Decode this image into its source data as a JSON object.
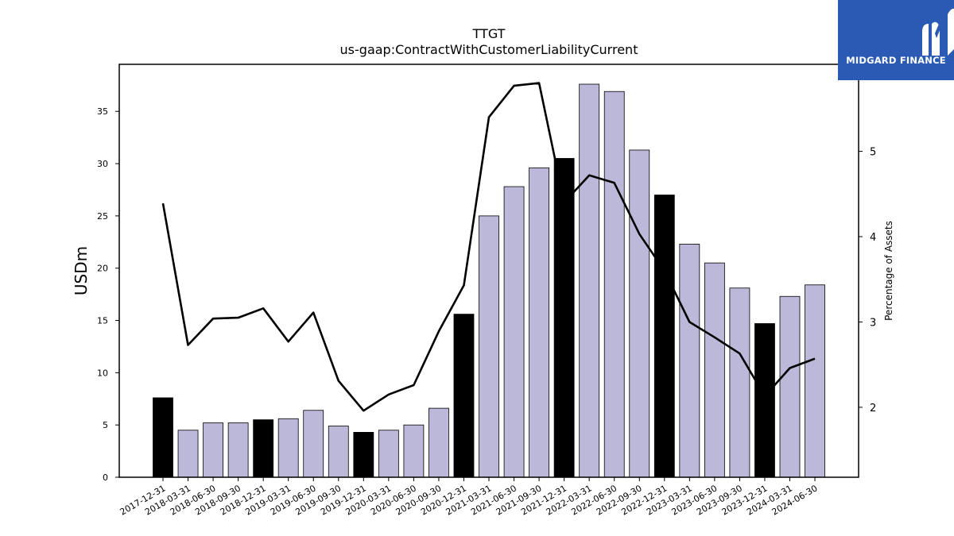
{
  "chart_data": {
    "type": "bar",
    "title": "TTGT",
    "subtitle": "us-gaap:ContractWithCustomerLiabilityCurrent",
    "ylabel": "USDm",
    "ylabel_right": "Percentage of Assets",
    "ylim": [
      0,
      39.5
    ],
    "ylim_right": [
      1.18,
      6.02
    ],
    "yticks": [
      0,
      5,
      10,
      15,
      20,
      25,
      30,
      35
    ],
    "yticks_right": [
      2,
      3,
      4,
      5
    ],
    "grid": false,
    "categories": [
      "2017-12-31",
      "2018-03-31",
      "2018-06-30",
      "2018-09-30",
      "2018-12-31",
      "2019-03-31",
      "2019-06-30",
      "2019-09-30",
      "2019-12-31",
      "2020-03-31",
      "2020-06-30",
      "2020-09-30",
      "2020-12-31",
      "2021-03-31",
      "2021-06-30",
      "2021-09-30",
      "2021-12-31",
      "2022-03-31",
      "2022-06-30",
      "2022-09-30",
      "2022-12-31",
      "2023-03-31",
      "2023-06-30",
      "2023-09-30",
      "2023-12-31",
      "2024-03-31",
      "2024-06-30"
    ],
    "series": [
      {
        "values": [
          7.6,
          4.5,
          5.2,
          5.2,
          5.5,
          5.6,
          6.4,
          4.9,
          4.3,
          4.5,
          5.0,
          6.6,
          15.6,
          25.0,
          27.8,
          29.6,
          30.5,
          37.6,
          36.9,
          31.3,
          27.0,
          22.3,
          20.5,
          18.1,
          14.7,
          17.3,
          18.4
        ],
        "bar_colors": [
          "#000000",
          "#bcb8da",
          "#bcb8da",
          "#bcb8da",
          "#000000",
          "#bcb8da",
          "#bcb8da",
          "#bcb8da",
          "#000000",
          "#bcb8da",
          "#bcb8da",
          "#bcb8da",
          "#000000",
          "#bcb8da",
          "#bcb8da",
          "#bcb8da",
          "#000000",
          "#bcb8da",
          "#bcb8da",
          "#bcb8da",
          "#000000",
          "#bcb8da",
          "#bcb8da",
          "#bcb8da",
          "#000000",
          "#bcb8da",
          "#bcb8da"
        ]
      },
      {
        "axis": "right",
        "type": "line",
        "color": "#000000",
        "values": [
          4.39,
          2.73,
          3.04,
          3.05,
          3.16,
          2.77,
          3.11,
          2.31,
          1.96,
          2.15,
          2.26,
          2.89,
          3.43,
          5.4,
          5.77,
          5.8,
          4.4,
          4.72,
          4.63,
          4.03,
          3.6,
          3.0,
          2.82,
          2.63,
          2.13,
          2.46,
          2.57
        ]
      }
    ]
  },
  "logo": {
    "text": "MIDGARD FINANCE",
    "color": "#2a5ab3"
  }
}
